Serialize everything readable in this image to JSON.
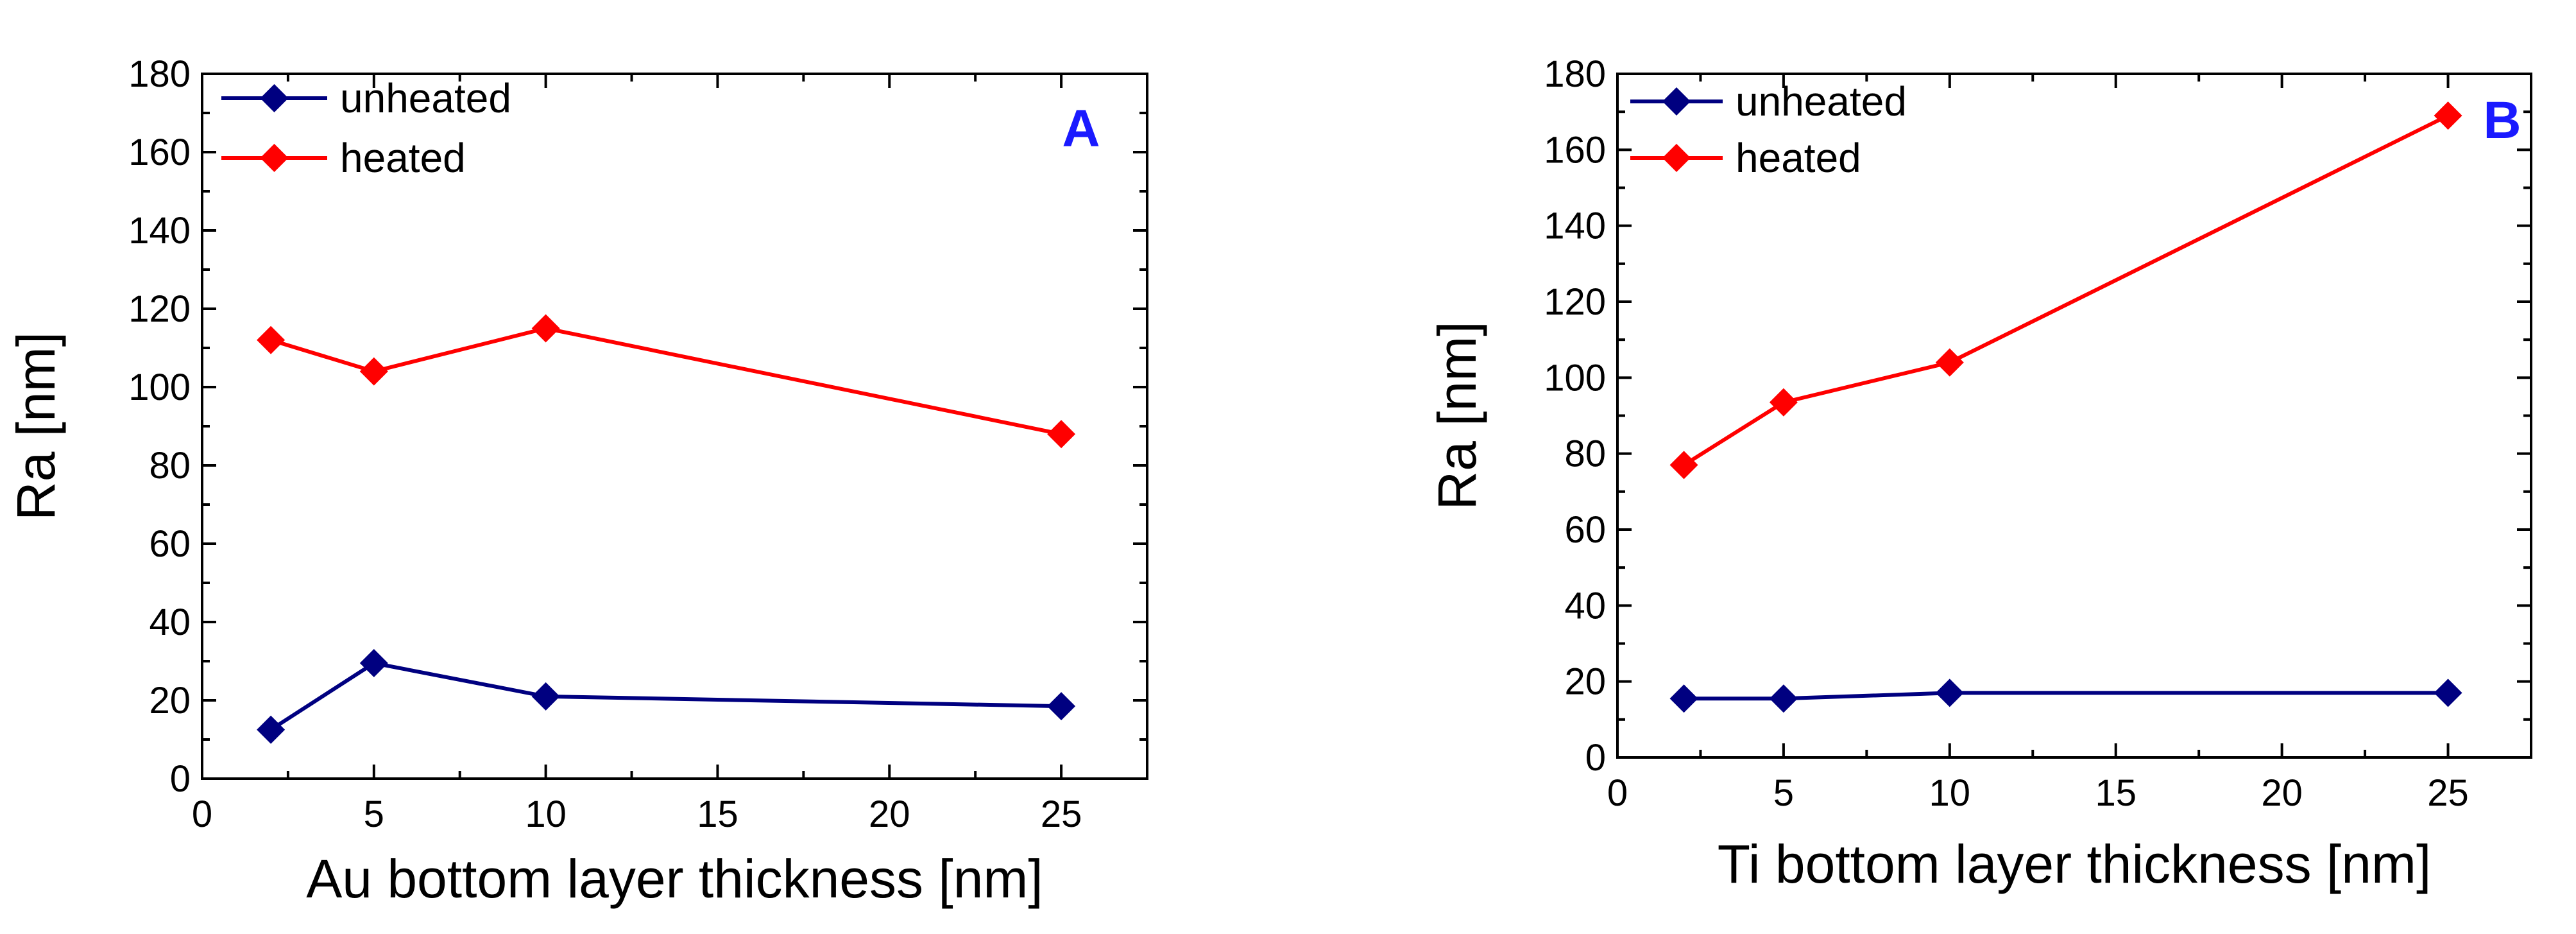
{
  "chart_data": [
    {
      "type": "line",
      "panel_label": "A",
      "xlabel": "Au bottom layer thickness [nm]",
      "ylabel": "Ra [nm]",
      "xlim": [
        0,
        27.5
      ],
      "ylim": [
        0,
        180
      ],
      "xticks": [
        0,
        5,
        10,
        15,
        20,
        25
      ],
      "yticks": [
        0,
        20,
        40,
        60,
        80,
        100,
        120,
        140,
        160,
        180
      ],
      "legend_position": "top-left",
      "x": [
        2,
        5,
        10,
        25
      ],
      "series": [
        {
          "name": "unheated",
          "color": "#000080",
          "values": [
            12.5,
            29.5,
            21,
            18.5
          ]
        },
        {
          "name": "heated",
          "color": "#ff0000",
          "values": [
            112,
            104,
            115,
            88
          ]
        }
      ]
    },
    {
      "type": "line",
      "panel_label": "B",
      "xlabel": "Ti bottom layer thickness [nm]",
      "ylabel": "Ra [nm]",
      "xlim": [
        0,
        27.5
      ],
      "ylim": [
        0,
        180
      ],
      "xticks": [
        0,
        5,
        10,
        15,
        20,
        25
      ],
      "yticks": [
        0,
        20,
        40,
        60,
        80,
        100,
        120,
        140,
        160,
        180
      ],
      "legend_position": "top-left",
      "x": [
        2,
        5,
        10,
        25
      ],
      "series": [
        {
          "name": "unheated",
          "color": "#000080",
          "values": [
            15.5,
            15.5,
            17,
            17
          ]
        },
        {
          "name": "heated",
          "color": "#ff0000",
          "values": [
            77,
            93.5,
            104,
            169
          ]
        }
      ]
    }
  ],
  "colors": {
    "panel_label": "#1a1aff",
    "axis": "#000000"
  }
}
